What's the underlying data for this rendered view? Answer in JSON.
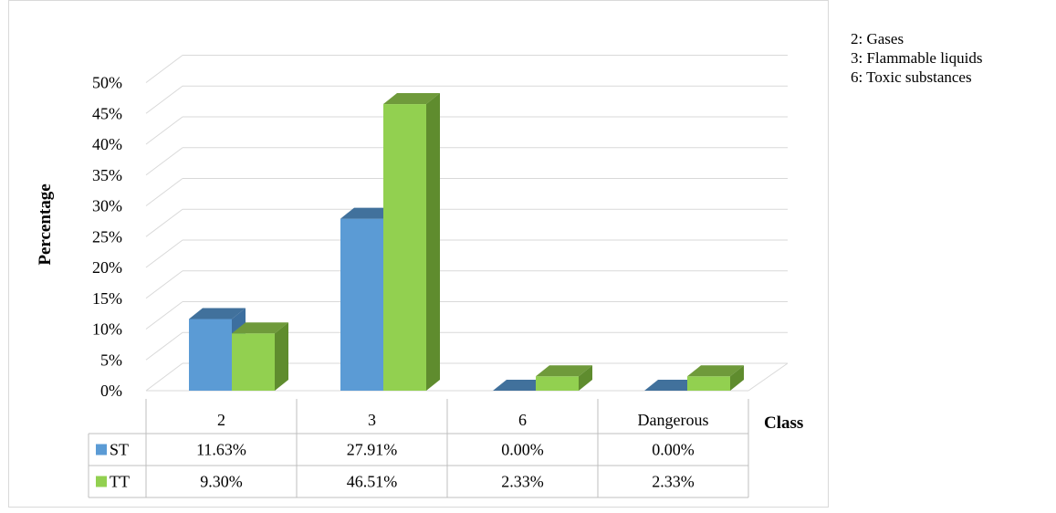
{
  "chart_data": {
    "type": "bar",
    "categories": [
      "2",
      "3",
      "6",
      "Dangerous"
    ],
    "series": [
      {
        "name": "ST",
        "values": [
          11.63,
          27.91,
          0.0,
          0.0
        ],
        "labels": [
          "11.63%",
          "27.91%",
          "0.00%",
          "0.00%"
        ],
        "color": "#5b9bd5",
        "side_color": "#3d6f9f",
        "top_color": "#41719c"
      },
      {
        "name": "TT",
        "values": [
          9.3,
          46.51,
          2.33,
          2.33
        ],
        "labels": [
          "9.30%",
          "46.51%",
          "2.33%",
          "2.33%"
        ],
        "color": "#92d050",
        "side_color": "#5f8c2e",
        "top_color": "#6f9a3b"
      }
    ],
    "ylabel": "Percentage",
    "xlabel": "Class",
    "ylim": [
      0,
      50
    ],
    "yticks": [
      "0%",
      "5%",
      "10%",
      "15%",
      "20%",
      "25%",
      "30%",
      "35%",
      "40%",
      "45%",
      "50%"
    ],
    "grid": true,
    "data_table": true
  },
  "notes": [
    "2: Gases",
    "3: Flammable liquids",
    "6: Toxic substances"
  ]
}
